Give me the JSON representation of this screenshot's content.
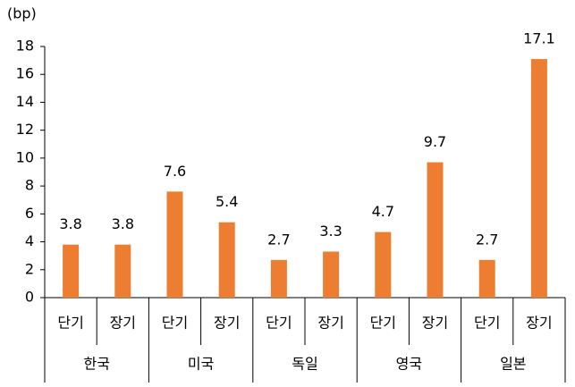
{
  "chart_data": {
    "type": "bar",
    "y_label": "(bp)",
    "categories": [
      "단기",
      "장기",
      "단기",
      "장기",
      "단기",
      "장기",
      "단기",
      "장기",
      "단기",
      "장기"
    ],
    "groups": [
      "한국",
      "미국",
      "독일",
      "영국",
      "일본"
    ],
    "values": [
      3.8,
      3.8,
      7.6,
      5.4,
      2.7,
      3.3,
      4.7,
      9.7,
      2.7,
      17.1
    ],
    "color": "#ed7d31",
    "ylim": [
      0,
      18
    ],
    "yticks": [
      0,
      2,
      4,
      6,
      8,
      10,
      12,
      14,
      16,
      18
    ],
    "grid": false
  }
}
